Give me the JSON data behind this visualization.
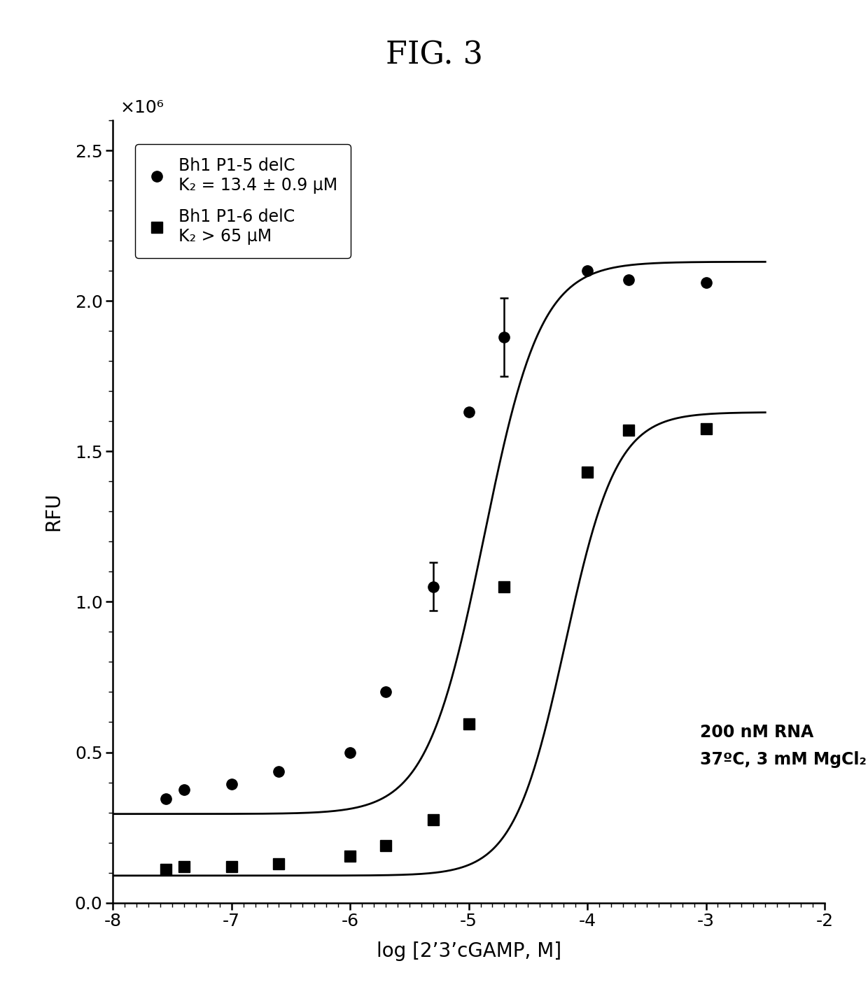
{
  "title": "FIG. 3",
  "xlabel": "log [2’3’cGAMP, M]",
  "ylabel": "RFU",
  "ylim": [
    0,
    2600000.0
  ],
  "xlim": [
    -8,
    -2
  ],
  "ytick_labels": [
    "0.0",
    "0.5",
    "1.0",
    "1.5",
    "2.0",
    "2.5"
  ],
  "ytick_values": [
    0,
    500000,
    1000000,
    1500000,
    2000000,
    2500000
  ],
  "xtick_values": [
    -8,
    -7,
    -6,
    -5,
    -4,
    -3,
    -2
  ],
  "xtick_labels": [
    "-8",
    "-7",
    "-6",
    "-5",
    "-4",
    "-3",
    "-2"
  ],
  "scale_label": "×10⁶",
  "annotation": "200 nM RNA\n37ºC, 3 mM MgCl₂",
  "series1": {
    "label_line1": "Bh1 P1-5 delC",
    "label_line2": "K₂ = 13.4 ± 0.9 μM",
    "x_data": [
      -7.55,
      -7.4,
      -7.0,
      -6.6,
      -6.0,
      -5.7,
      -5.3,
      -5.0,
      -4.7,
      -4.0,
      -3.65,
      -3.0
    ],
    "y_data": [
      345000.0,
      375000.0,
      395000.0,
      435000.0,
      500000.0,
      700000.0,
      1050000.0,
      1630000.0,
      1880000.0,
      2100000.0,
      2070000.0,
      2060000.0
    ],
    "y_err": [
      null,
      null,
      null,
      null,
      null,
      null,
      80000.0,
      null,
      130000.0,
      null,
      null,
      null
    ],
    "Kd": 1.34e-05,
    "Fmin": 295000.0,
    "Fmax": 2130000.0,
    "hill": 1.8
  },
  "series2": {
    "label_line1": "Bh1 P1-6 delC",
    "label_line2": "K₂ > 65 μM",
    "x_data": [
      -7.55,
      -7.4,
      -7.0,
      -6.6,
      -6.0,
      -5.7,
      -5.3,
      -5.0,
      -4.7,
      -4.0,
      -3.65,
      -3.0
    ],
    "y_data": [
      110000.0,
      120000.0,
      120000.0,
      130000.0,
      155000.0,
      190000.0,
      275000.0,
      595000.0,
      1050000.0,
      1430000.0,
      1570000.0,
      1575000.0
    ],
    "y_err": [
      null,
      null,
      null,
      null,
      null,
      null,
      null,
      null,
      null,
      null,
      null,
      null
    ],
    "Kd": 6.5e-05,
    "Fmin": 90000.0,
    "Fmax": 1630000.0,
    "hill": 2.0
  },
  "marker_color": "#000000",
  "line_color": "#000000",
  "background_color": "#ffffff",
  "title_fontsize": 32,
  "axis_fontsize": 20,
  "tick_fontsize": 18,
  "legend_fontsize": 17,
  "annotation_fontsize": 17
}
